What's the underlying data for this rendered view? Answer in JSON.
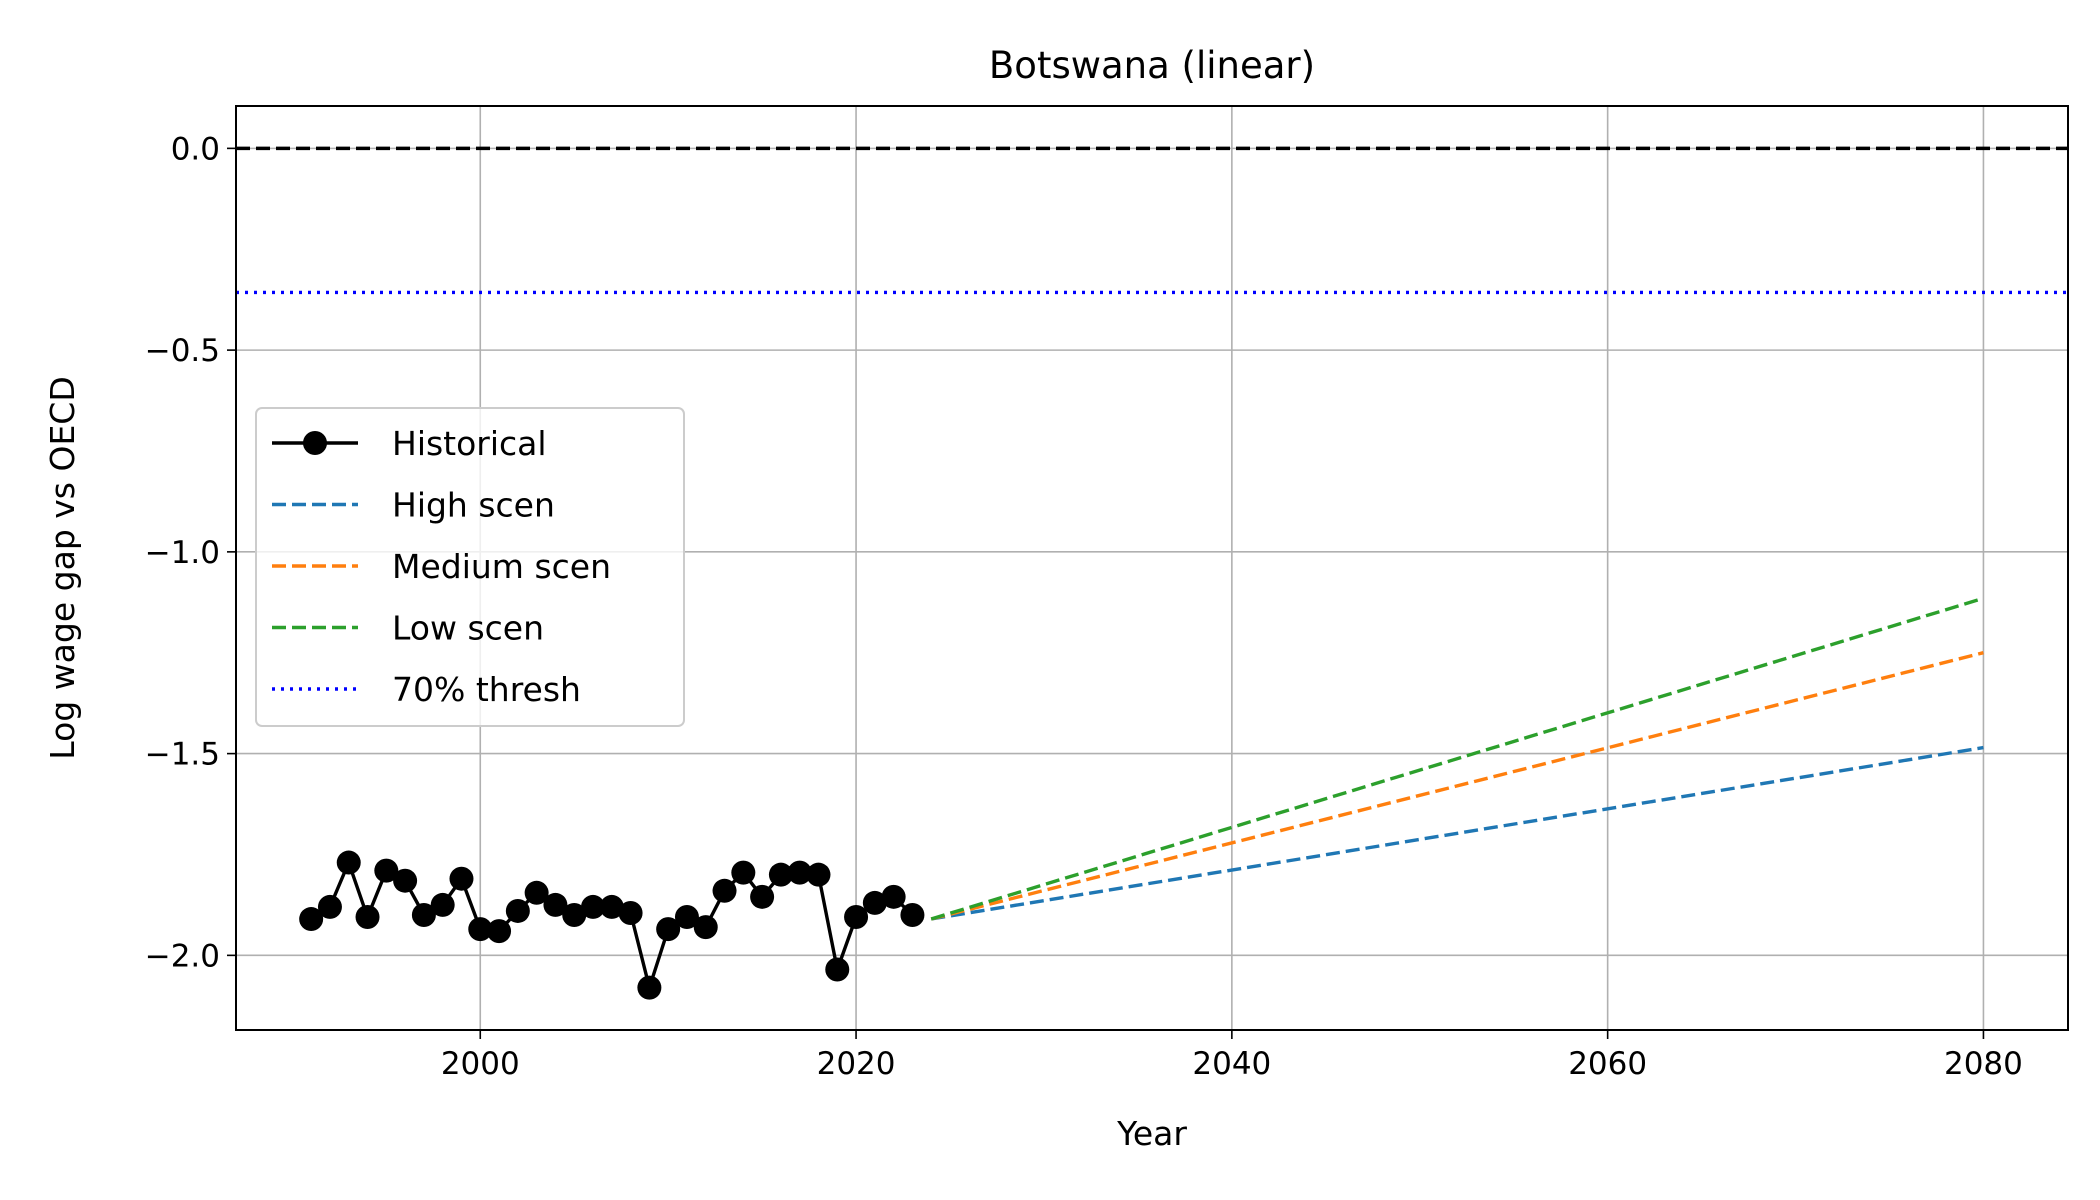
{
  "chart_data": {
    "type": "line",
    "title": "Botswana (linear)",
    "xlabel": "Year",
    "ylabel": "Log wage gap vs OECD",
    "xlim": [
      1987,
      2084.5
    ],
    "ylim": [
      -2.185,
      0.105
    ],
    "x_ticks": [
      2000,
      2020,
      2040,
      2060,
      2080
    ],
    "y_ticks": [
      0.0,
      -0.5,
      -1.0,
      -1.5,
      -2.0
    ],
    "x_tick_labels": [
      "2000",
      "2020",
      "2040",
      "2060",
      "2080"
    ],
    "y_tick_labels": [
      "0.0",
      "−0.5",
      "−1.0",
      "−1.5",
      "−2.0"
    ],
    "grid": true,
    "legend_position": "center-left",
    "reference_lines": [
      {
        "y": 0.0,
        "color": "#000000",
        "style": "dashed"
      },
      {
        "name": "70% thresh",
        "y": -0.357,
        "color": "#0000ff",
        "style": "dotted"
      }
    ],
    "series": [
      {
        "name": "Historical",
        "color": "#000000",
        "style": "solid-marker",
        "x": [
          1991,
          1992,
          1993,
          1994,
          1995,
          1996,
          1997,
          1998,
          1999,
          2000,
          2001,
          2002,
          2003,
          2004,
          2005,
          2006,
          2007,
          2008,
          2009,
          2010,
          2011,
          2012,
          2013,
          2014,
          2015,
          2016,
          2017,
          2018,
          2019,
          2020,
          2021,
          2022,
          2023
        ],
        "y": [
          -1.91,
          -1.88,
          -1.77,
          -1.905,
          -1.79,
          -1.815,
          -1.9,
          -1.875,
          -1.81,
          -1.935,
          -1.94,
          -1.89,
          -1.845,
          -1.875,
          -1.9,
          -1.88,
          -1.88,
          -1.895,
          -2.08,
          -1.935,
          -1.905,
          -1.93,
          -1.84,
          -1.795,
          -1.855,
          -1.8,
          -1.795,
          -1.8,
          -2.035,
          -1.905,
          -1.87,
          -1.855,
          -1.9
        ]
      },
      {
        "name": "High scen",
        "color": "#1f77b4",
        "style": "dashed",
        "x": [
          2024,
          2080
        ],
        "y": [
          -1.91,
          -1.485
        ]
      },
      {
        "name": "Medium scen",
        "color": "#ff7f0e",
        "style": "dashed",
        "x": [
          2024,
          2080
        ],
        "y": [
          -1.91,
          -1.25
        ]
      },
      {
        "name": "Low scen",
        "color": "#2ca02c",
        "style": "dashed",
        "x": [
          2024,
          2080
        ],
        "y": [
          -1.91,
          -1.115
        ]
      }
    ],
    "legend": [
      "Historical",
      "High scen",
      "Medium scen",
      "Low scen",
      "70% thresh"
    ]
  }
}
